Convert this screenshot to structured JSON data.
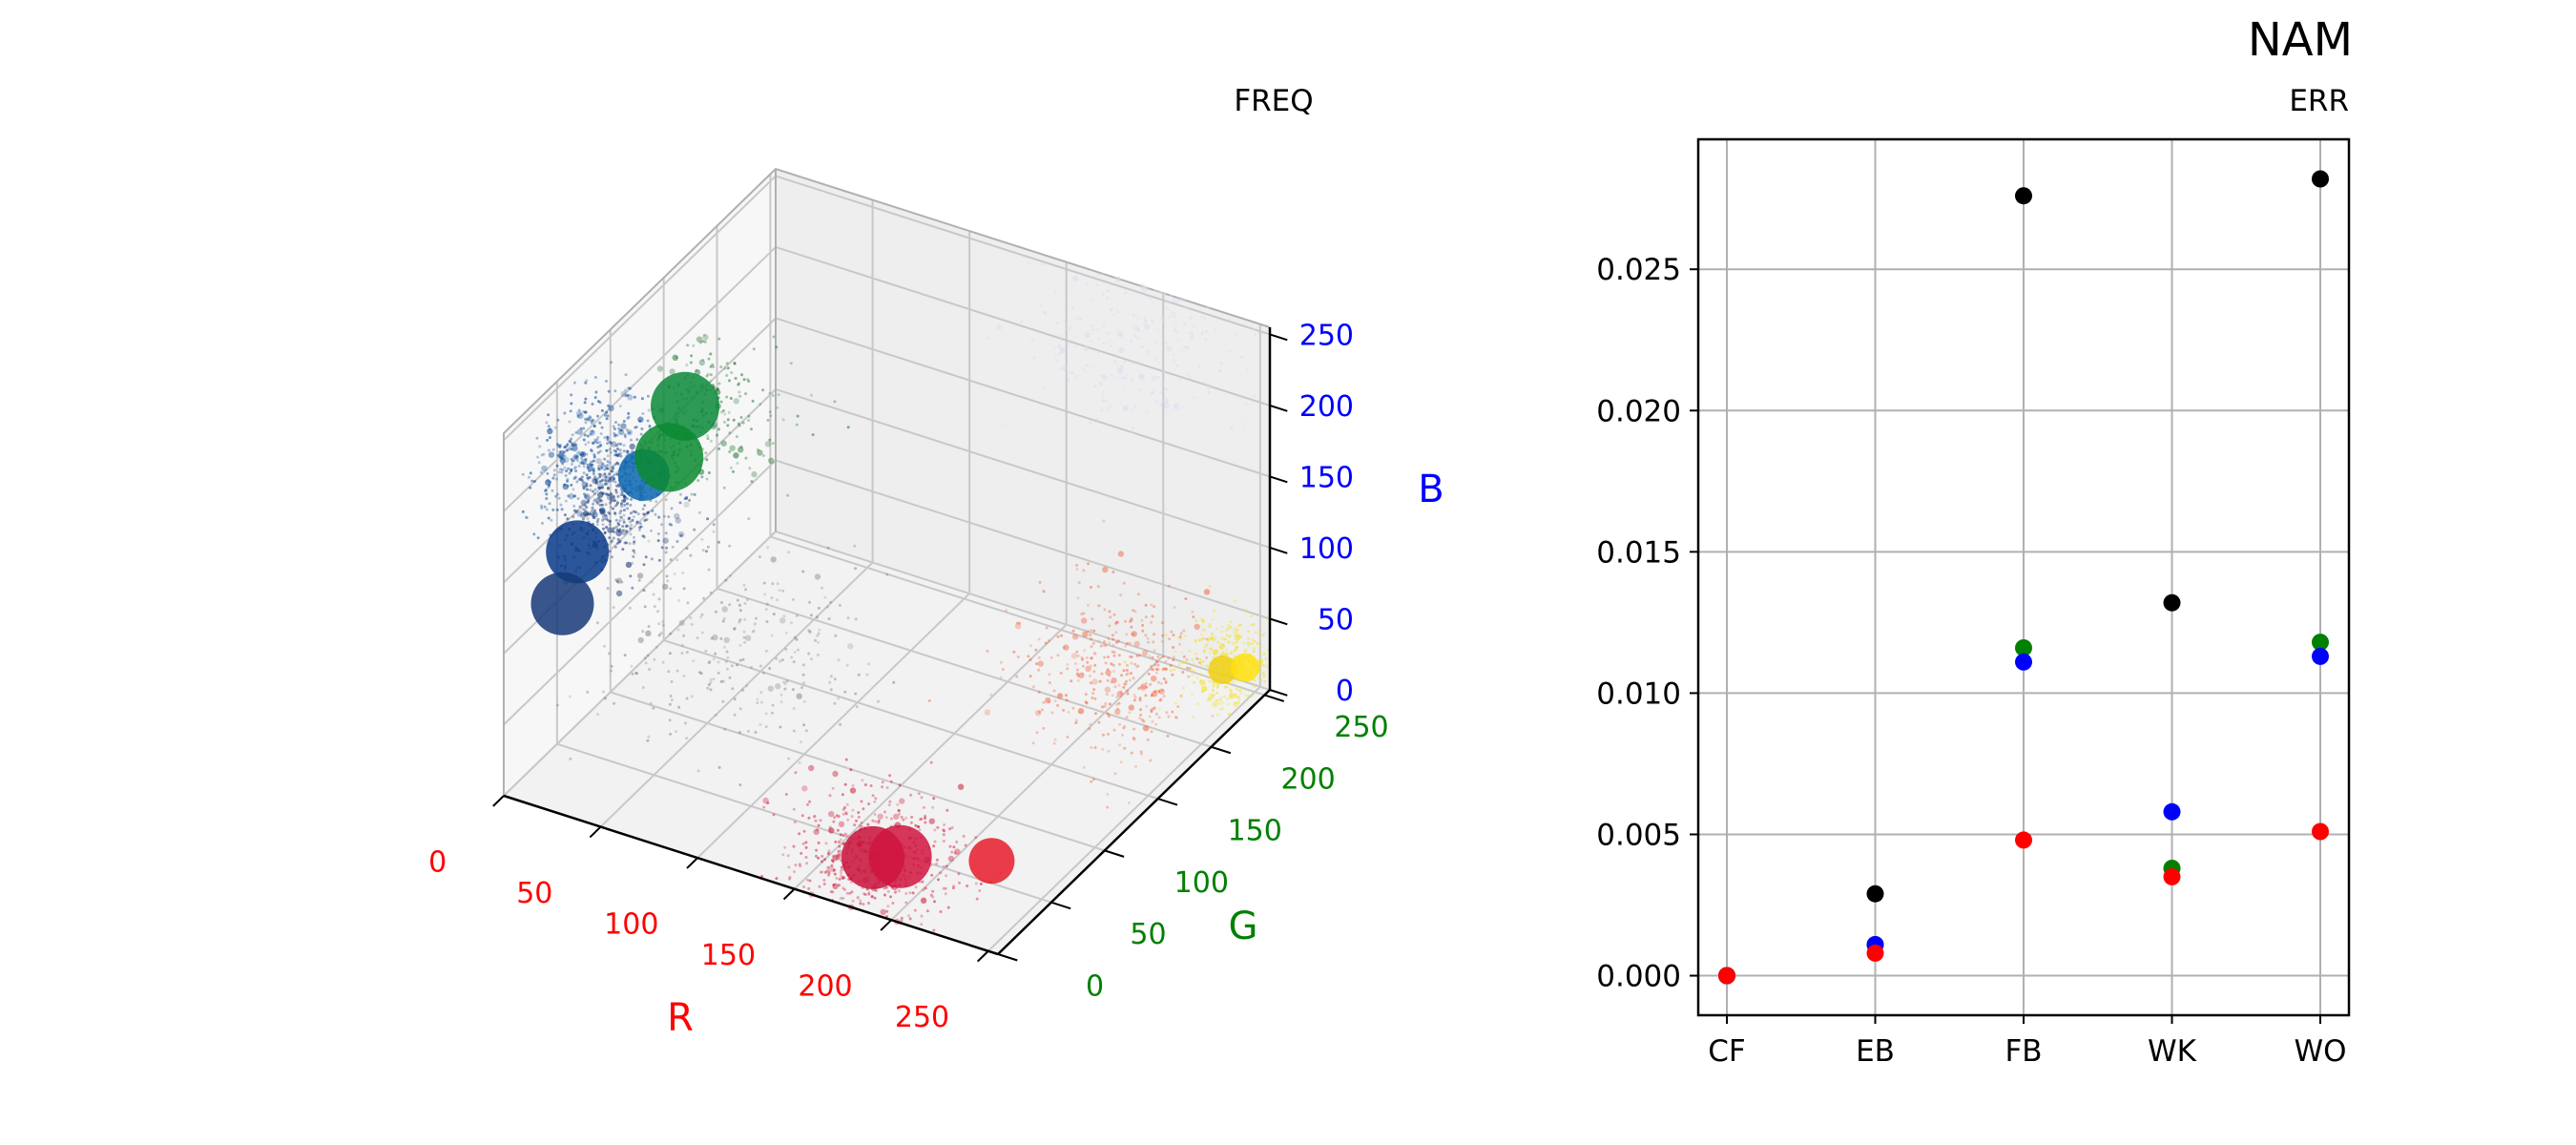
{
  "figure": {
    "title": "NAM"
  },
  "chart_data": [
    {
      "type": "scatter",
      "projection": "3d",
      "title": "FREQ",
      "axes": {
        "x": {
          "label": "R",
          "ticks": [
            "0",
            "50",
            "100",
            "150",
            "200",
            "250"
          ],
          "lim": [
            0,
            255
          ],
          "color": "#ff0000"
        },
        "y": {
          "label": "G",
          "ticks": [
            "0",
            "50",
            "100",
            "150",
            "200",
            "250"
          ],
          "lim": [
            0,
            255
          ],
          "color": "#008000"
        },
        "z": {
          "label": "B",
          "ticks": [
            "0",
            "50",
            "100",
            "150",
            "200",
            "250"
          ],
          "lim": [
            0,
            255
          ],
          "color": "#0000ff"
        }
      },
      "grid": true,
      "clusters": [
        {
          "r": 10,
          "g": 60,
          "b": 200,
          "color": "#0a4a9a",
          "spread": 35,
          "n": 450
        },
        {
          "r": 5,
          "g": 90,
          "b": 140,
          "color": "#1a3a7a",
          "spread": 35,
          "n": 400
        },
        {
          "r": 5,
          "g": 170,
          "b": 150,
          "color": "#2a7a3a",
          "spread": 40,
          "n": 250
        },
        {
          "r": 50,
          "g": 120,
          "b": 40,
          "color": "#888888",
          "spread": 60,
          "n": 300
        },
        {
          "r": 180,
          "g": 20,
          "b": 20,
          "color": "#d02040",
          "spread": 40,
          "n": 500
        },
        {
          "r": 235,
          "g": 150,
          "b": 80,
          "color": "#f07050",
          "spread": 45,
          "n": 400
        },
        {
          "r": 245,
          "g": 235,
          "b": 30,
          "color": "#f5e020",
          "spread": 25,
          "n": 300
        },
        {
          "r": 200,
          "g": 240,
          "b": 230,
          "color": "#dcdcf0",
          "spread": 50,
          "n": 250
        }
      ],
      "dominant_colors": [
        {
          "r": 20,
          "g": 95,
          "b": 165,
          "color": "#0a66b0",
          "size": 18
        },
        {
          "r": 5,
          "g": 60,
          "b": 130,
          "color": "#083a8a",
          "size": 22
        },
        {
          "r": 0,
          "g": 55,
          "b": 95,
          "color": "#163a78",
          "size": 22
        },
        {
          "r": 0,
          "g": 170,
          "b": 150,
          "color": "#0a8a3a",
          "size": 24
        },
        {
          "r": 0,
          "g": 155,
          "b": 125,
          "color": "#0a8a30",
          "size": 24
        },
        {
          "r": 185,
          "g": 10,
          "b": 30,
          "color": "#c8103a",
          "size": 22
        },
        {
          "r": 198,
          "g": 12,
          "b": 35,
          "color": "#d01540",
          "size": 22
        },
        {
          "r": 238,
          "g": 25,
          "b": 40,
          "color": "#e81c2a",
          "size": 16
        },
        {
          "r": 240,
          "g": 238,
          "b": 20,
          "color": "#f0d010",
          "size": 10
        },
        {
          "r": 245,
          "g": 250,
          "b": 15,
          "color": "#ffe010",
          "size": 10
        }
      ]
    },
    {
      "type": "scatter",
      "title": "ERR",
      "categories": [
        "CF",
        "EB",
        "FB",
        "WK",
        "WO"
      ],
      "ylim": [
        -0.0014,
        0.0296
      ],
      "yticks": [
        "0.000",
        "0.005",
        "0.010",
        "0.015",
        "0.020",
        "0.025"
      ],
      "grid": true,
      "series": [
        {
          "color": "#000000",
          "values": [
            0.0,
            0.0029,
            0.0276,
            0.0132,
            0.0282
          ]
        },
        {
          "color": "#008000",
          "values": [
            0.0,
            0.0011,
            0.0116,
            0.0038,
            0.0118
          ]
        },
        {
          "color": "#0000ff",
          "values": [
            0.0,
            0.0011,
            0.0111,
            0.0058,
            0.0113
          ]
        },
        {
          "color": "#ff0000",
          "values": [
            0.0,
            0.0008,
            0.0048,
            0.0035,
            0.0051
          ]
        }
      ]
    }
  ]
}
